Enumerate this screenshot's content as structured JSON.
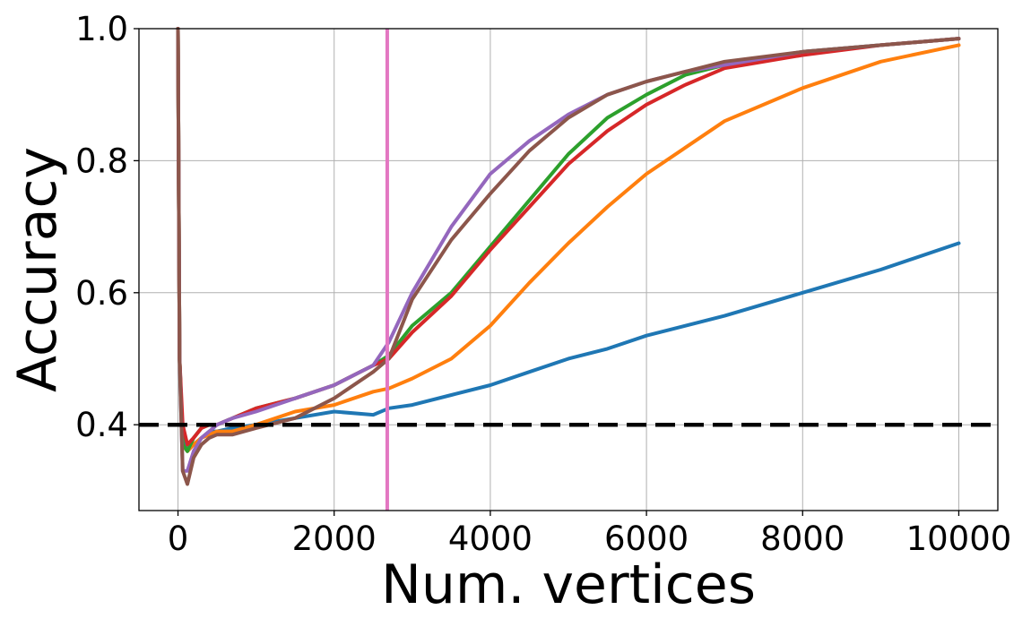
{
  "chart_data": {
    "type": "line",
    "title": "",
    "xlabel": "Num. vertices",
    "ylabel": "Accuracy",
    "xlim": [
      -500,
      10500
    ],
    "ylim": [
      0.27,
      1.0
    ],
    "xticks": [
      0,
      2000,
      4000,
      6000,
      8000,
      10000
    ],
    "yticks": [
      0.4,
      0.6,
      0.8,
      1.0
    ],
    "xtick_labels": [
      "0",
      "2000",
      "4000",
      "6000",
      "8000",
      "10000"
    ],
    "ytick_labels": [
      "0.4",
      "0.6",
      "0.8",
      "1.0"
    ],
    "grid": true,
    "legend": "none",
    "reference_lines": [
      {
        "orientation": "horizontal",
        "value": 0.4,
        "style": "dashed",
        "color": "#000000"
      },
      {
        "orientation": "vertical",
        "value": 2680,
        "style": "solid",
        "color": "#e377c2"
      }
    ],
    "series": [
      {
        "color": "#1f77b4",
        "x": [
          0,
          20,
          60,
          120,
          200,
          300,
          400,
          500,
          700,
          1000,
          1500,
          2000,
          2500,
          2700,
          3000,
          3500,
          4000,
          4500,
          5000,
          5500,
          6000,
          7000,
          8000,
          9000,
          10000
        ],
        "y": [
          1.0,
          0.5,
          0.38,
          0.36,
          0.37,
          0.38,
          0.39,
          0.39,
          0.395,
          0.4,
          0.41,
          0.42,
          0.415,
          0.425,
          0.43,
          0.445,
          0.46,
          0.48,
          0.5,
          0.515,
          0.535,
          0.565,
          0.6,
          0.635,
          0.675
        ]
      },
      {
        "color": "#ff7f0e",
        "x": [
          0,
          20,
          60,
          120,
          200,
          300,
          400,
          500,
          700,
          1000,
          1500,
          2000,
          2500,
          2700,
          3000,
          3500,
          4000,
          4500,
          5000,
          5500,
          6000,
          6500,
          7000,
          8000,
          9000,
          10000
        ],
        "y": [
          1.0,
          0.5,
          0.37,
          0.36,
          0.37,
          0.38,
          0.385,
          0.39,
          0.39,
          0.4,
          0.42,
          0.43,
          0.45,
          0.455,
          0.47,
          0.5,
          0.55,
          0.615,
          0.675,
          0.73,
          0.78,
          0.82,
          0.86,
          0.91,
          0.95,
          0.975
        ]
      },
      {
        "color": "#2ca02c",
        "x": [
          0,
          20,
          60,
          120,
          200,
          300,
          400,
          500,
          700,
          1000,
          1500,
          2000,
          2500,
          2700,
          3000,
          3500,
          4000,
          4500,
          5000,
          5500,
          6000,
          6500,
          7000,
          8000,
          9000,
          10000
        ],
        "y": [
          1.0,
          0.5,
          0.37,
          0.36,
          0.38,
          0.395,
          0.4,
          0.4,
          0.41,
          0.425,
          0.44,
          0.46,
          0.49,
          0.505,
          0.55,
          0.6,
          0.67,
          0.74,
          0.81,
          0.865,
          0.9,
          0.93,
          0.945,
          0.965,
          0.975,
          0.985
        ]
      },
      {
        "color": "#d62728",
        "x": [
          0,
          20,
          60,
          120,
          200,
          300,
          400,
          500,
          700,
          1000,
          1500,
          2000,
          2500,
          2700,
          3000,
          3500,
          4000,
          4500,
          5000,
          5500,
          6000,
          6500,
          7000,
          8000,
          9000,
          10000
        ],
        "y": [
          1.0,
          0.5,
          0.4,
          0.37,
          0.38,
          0.395,
          0.4,
          0.4,
          0.41,
          0.425,
          0.44,
          0.46,
          0.49,
          0.5,
          0.54,
          0.595,
          0.665,
          0.73,
          0.795,
          0.845,
          0.885,
          0.915,
          0.94,
          0.96,
          0.975,
          0.985
        ]
      },
      {
        "color": "#9467bd",
        "x": [
          0,
          20,
          60,
          120,
          200,
          300,
          400,
          500,
          700,
          1000,
          1500,
          2000,
          2500,
          2700,
          3000,
          3500,
          4000,
          4500,
          5000,
          5500,
          6000,
          6500,
          7000,
          8000,
          9000,
          10000
        ],
        "y": [
          1.0,
          0.5,
          0.33,
          0.33,
          0.36,
          0.38,
          0.39,
          0.4,
          0.41,
          0.42,
          0.44,
          0.46,
          0.49,
          0.525,
          0.6,
          0.7,
          0.78,
          0.83,
          0.87,
          0.9,
          0.92,
          0.935,
          0.945,
          0.965,
          0.975,
          0.985
        ]
      },
      {
        "color": "#8c564b",
        "x": [
          0,
          20,
          60,
          120,
          200,
          300,
          400,
          500,
          700,
          1000,
          1500,
          2000,
          2500,
          2700,
          3000,
          3500,
          4000,
          4500,
          5000,
          5500,
          6000,
          6500,
          7000,
          8000,
          9000,
          10000
        ],
        "y": [
          1.0,
          0.5,
          0.33,
          0.31,
          0.35,
          0.37,
          0.38,
          0.385,
          0.385,
          0.395,
          0.41,
          0.44,
          0.48,
          0.5,
          0.59,
          0.68,
          0.75,
          0.815,
          0.865,
          0.9,
          0.92,
          0.935,
          0.95,
          0.965,
          0.975,
          0.985
        ]
      }
    ]
  }
}
